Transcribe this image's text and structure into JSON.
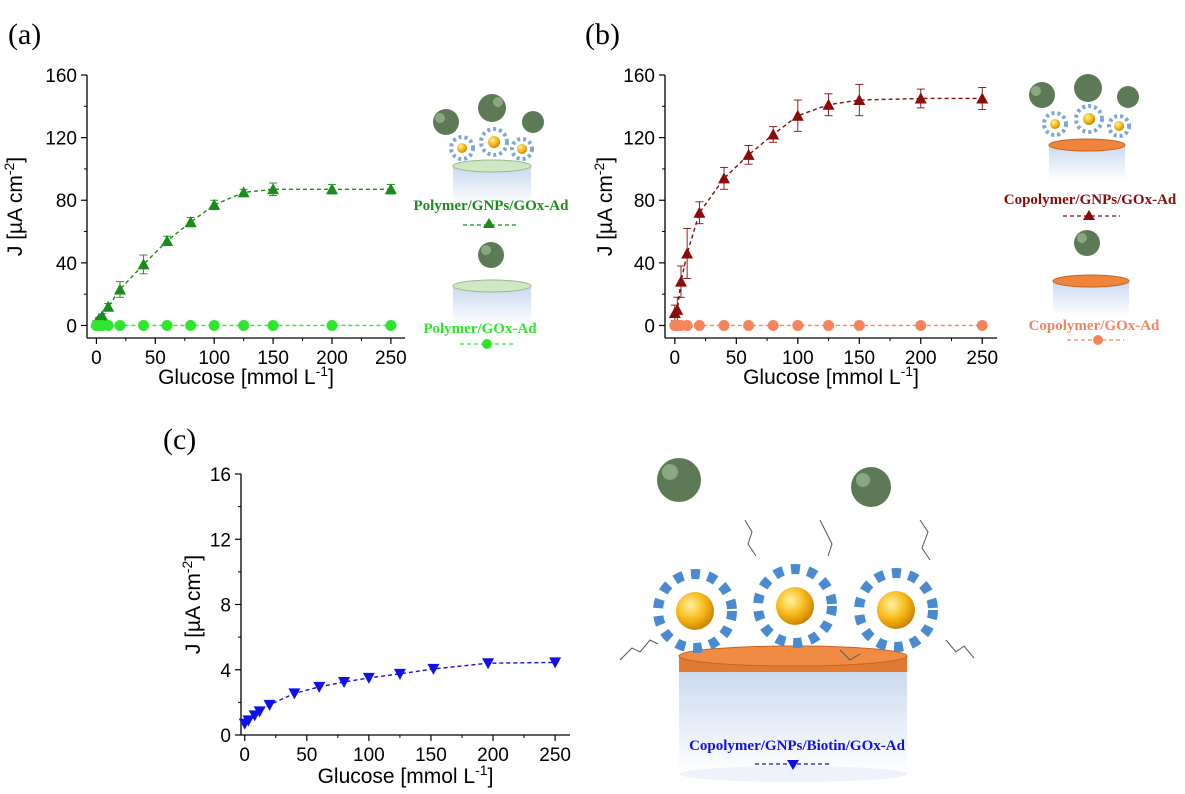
{
  "panels": [
    {
      "label": "(a)"
    },
    {
      "label": "(b)"
    },
    {
      "label": "(c)"
    }
  ],
  "chart_data": [
    {
      "type": "scatter",
      "panel": "(a)",
      "xlabel": "Glucose [mmol L-1]",
      "ylabel": "J [µA cm-2]",
      "xlim": [
        -8,
        262
      ],
      "ylim": [
        -8,
        160
      ],
      "xticks": [
        0,
        50,
        100,
        150,
        200,
        250
      ],
      "yticks": [
        0,
        40,
        80,
        120,
        160
      ],
      "grid": false,
      "series": [
        {
          "name": "Polymer/GNPs/GOx-Ad",
          "color": "#1a8c1a",
          "marker": "triangle-up",
          "x": [
            0,
            2,
            5,
            10,
            20,
            40,
            60,
            80,
            100,
            125,
            150,
            200,
            250
          ],
          "y": [
            2,
            4,
            6,
            12,
            23,
            39,
            54,
            66,
            77,
            85,
            87,
            87,
            87
          ],
          "err": [
            1,
            1,
            1.5,
            2,
            5,
            6,
            3,
            3,
            3,
            2,
            4,
            3,
            3
          ]
        },
        {
          "name": "Polymer/GOx-Ad",
          "color": "#2ee62e",
          "marker": "circle",
          "x": [
            0,
            2,
            5,
            10,
            20,
            40,
            60,
            80,
            100,
            125,
            150,
            200,
            250
          ],
          "y": [
            0,
            0,
            0,
            0,
            0,
            0,
            0,
            0,
            0,
            0,
            0,
            0,
            0
          ]
        }
      ]
    },
    {
      "type": "scatter",
      "panel": "(b)",
      "xlabel": "Glucose [mmol L-1]",
      "ylabel": "J [µA cm-2]",
      "xlim": [
        -8,
        262
      ],
      "ylim": [
        -8,
        160
      ],
      "xticks": [
        0,
        50,
        100,
        150,
        200,
        250
      ],
      "yticks": [
        0,
        40,
        80,
        120,
        160
      ],
      "grid": false,
      "series": [
        {
          "name": "Copolymer/GNPs/GOx-Ad",
          "color": "#8b0a0a",
          "marker": "triangle-up",
          "x": [
            0,
            2,
            5,
            10,
            20,
            40,
            60,
            80,
            100,
            125,
            150,
            200,
            250
          ],
          "y": [
            8,
            10,
            28,
            46,
            72,
            94,
            109,
            122,
            134,
            141,
            144,
            145,
            145
          ],
          "err": [
            5,
            8,
            10,
            16,
            7,
            7,
            6,
            5,
            10,
            7,
            10,
            6,
            7
          ]
        },
        {
          "name": "Copolymer/GOx-Ad",
          "color": "#f5845c",
          "marker": "circle",
          "x": [
            0,
            2,
            5,
            10,
            20,
            40,
            60,
            80,
            100,
            125,
            150,
            200,
            250
          ],
          "y": [
            0,
            0,
            0,
            0,
            0,
            0,
            0,
            0,
            0,
            0,
            0,
            0,
            0
          ]
        }
      ]
    },
    {
      "type": "scatter",
      "panel": "(c)",
      "xlabel": "Glucose [mmol L-1]",
      "ylabel": "J [µA cm-2]",
      "xlim": [
        -3,
        262
      ],
      "ylim": [
        0,
        16
      ],
      "xticks": [
        0,
        50,
        100,
        150,
        200,
        250
      ],
      "yticks": [
        0,
        4,
        8,
        12,
        16
      ],
      "grid": false,
      "series": [
        {
          "name": "Copolymer/GNPs/Biotin/GOx-Ad",
          "color": "#1010e8",
          "marker": "triangle-down",
          "x": [
            0,
            3,
            8,
            12,
            20,
            40,
            60,
            80,
            100,
            125,
            152,
            196,
            250
          ],
          "y": [
            0.7,
            0.9,
            1.2,
            1.45,
            1.85,
            2.55,
            2.95,
            3.25,
            3.5,
            3.75,
            4.05,
            4.4,
            4.45
          ]
        }
      ]
    }
  ]
}
